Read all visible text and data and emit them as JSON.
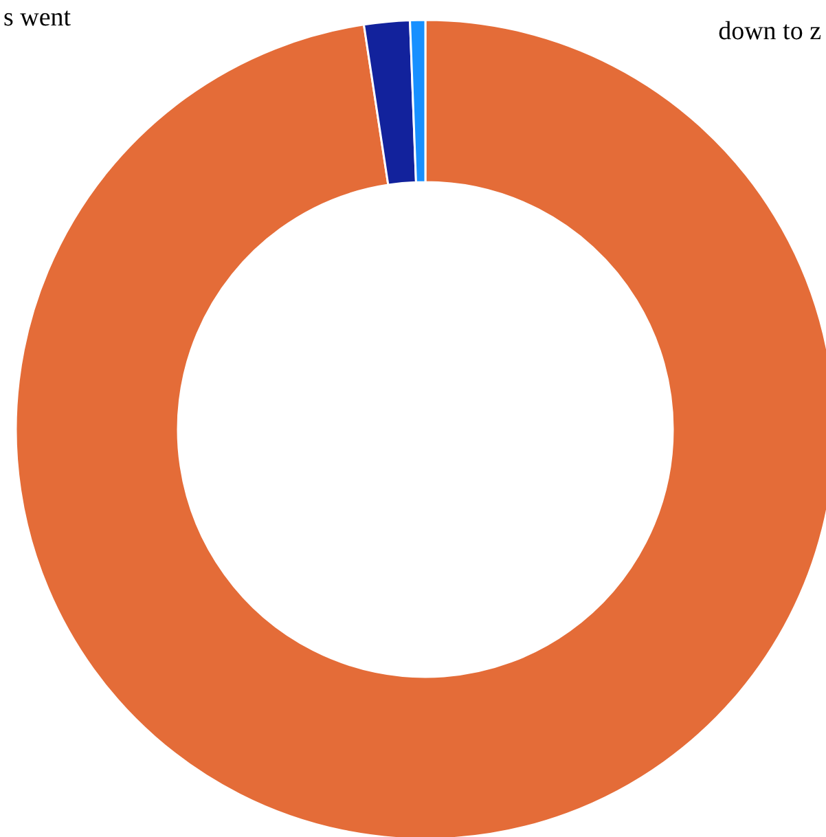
{
  "chart_data": {
    "type": "donut",
    "categories": [
      null,
      null,
      null
    ],
    "values": [
      97.6,
      1.8,
      0.6
    ],
    "colors": [
      "#e46c38",
      "#12229c",
      "#1890ff"
    ],
    "annotations": [
      "s went",
      "down to z"
    ]
  }
}
